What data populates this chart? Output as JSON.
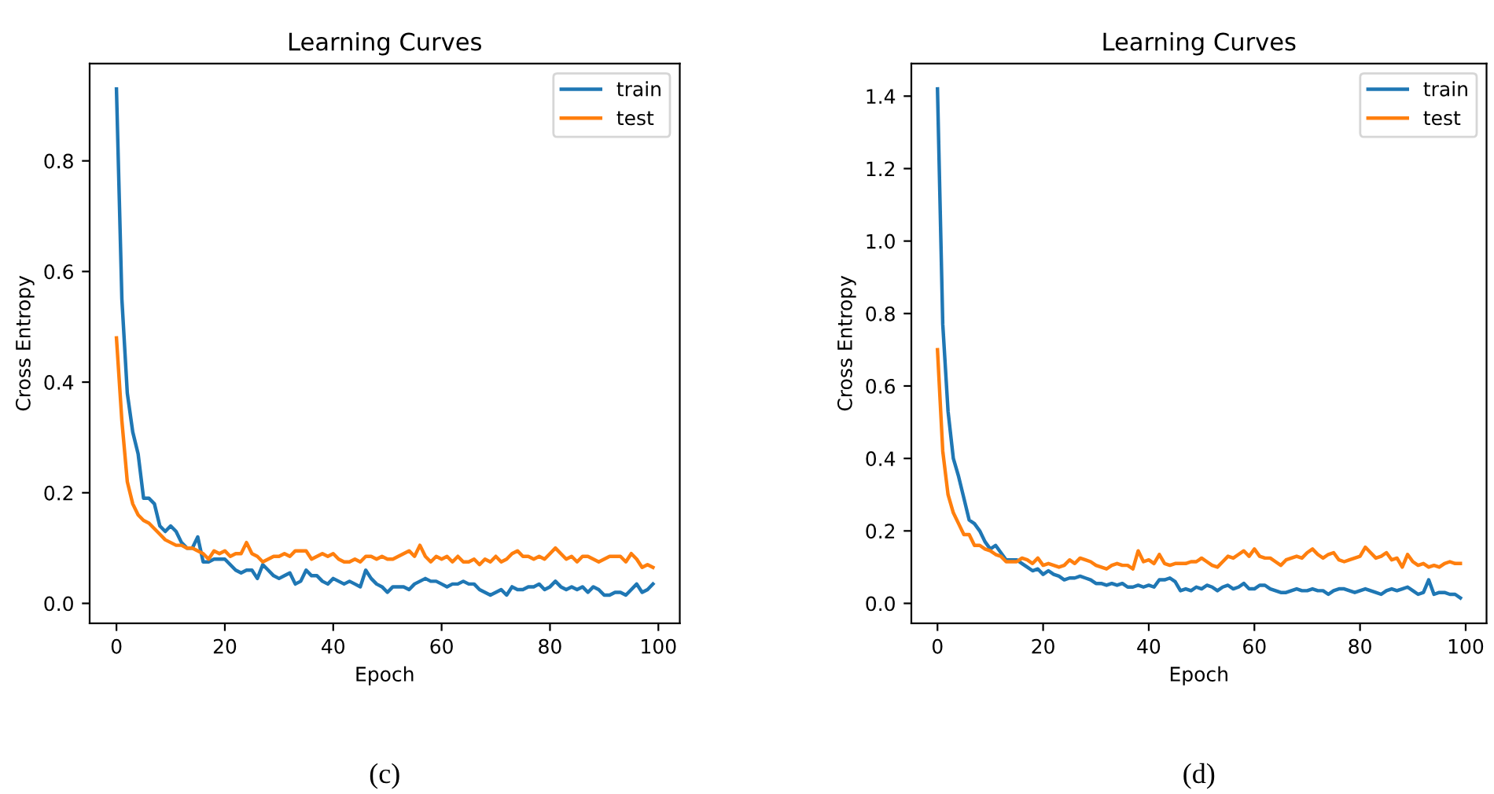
{
  "chart_data": [
    {
      "type": "line",
      "title": "Learning Curves",
      "xlabel": "Epoch",
      "ylabel": "Cross Entropy",
      "annotations": [
        "(c)"
      ],
      "legend": "top right",
      "xlim": [
        -4.95,
        103.95
      ],
      "ylim": [
        -0.036,
        0.976
      ],
      "xticks": [
        0,
        20,
        40,
        60,
        80,
        100
      ],
      "yticks": [
        {
          "value": 0,
          "label": "0.0"
        },
        {
          "value": 0.2,
          "label": "0.2"
        },
        {
          "value": 0.4,
          "label": "0.4"
        },
        {
          "value": 0.6,
          "label": "0.6"
        },
        {
          "value": 0.8,
          "label": "0.8"
        }
      ],
      "x": [
        0,
        1,
        2,
        3,
        4,
        5,
        6,
        7,
        8,
        9,
        10,
        11,
        12,
        13,
        14,
        15,
        16,
        17,
        18,
        19,
        20,
        21,
        22,
        23,
        24,
        25,
        26,
        27,
        28,
        29,
        30,
        31,
        32,
        33,
        34,
        35,
        36,
        37,
        38,
        39,
        40,
        41,
        42,
        43,
        44,
        45,
        46,
        47,
        48,
        49,
        50,
        51,
        52,
        53,
        54,
        55,
        56,
        57,
        58,
        59,
        60,
        61,
        62,
        63,
        64,
        65,
        66,
        67,
        68,
        69,
        70,
        71,
        72,
        73,
        74,
        75,
        76,
        77,
        78,
        79,
        80,
        81,
        82,
        83,
        84,
        85,
        86,
        87,
        88,
        89,
        90,
        91,
        92,
        93,
        94,
        95,
        96,
        97,
        98,
        99
      ],
      "series": [
        {
          "name": "train",
          "color": "#1f77b4",
          "values": [
            0.93,
            0.55,
            0.38,
            0.31,
            0.27,
            0.19,
            0.19,
            0.18,
            0.14,
            0.13,
            0.14,
            0.13,
            0.11,
            0.1,
            0.1,
            0.12,
            0.075,
            0.075,
            0.08,
            0.08,
            0.08,
            0.07,
            0.06,
            0.055,
            0.06,
            0.06,
            0.045,
            0.07,
            0.06,
            0.05,
            0.045,
            0.05,
            0.055,
            0.035,
            0.04,
            0.06,
            0.05,
            0.05,
            0.04,
            0.035,
            0.045,
            0.04,
            0.035,
            0.04,
            0.035,
            0.03,
            0.06,
            0.045,
            0.035,
            0.03,
            0.02,
            0.03,
            0.03,
            0.03,
            0.025,
            0.035,
            0.04,
            0.045,
            0.04,
            0.04,
            0.035,
            0.03,
            0.035,
            0.035,
            0.04,
            0.035,
            0.035,
            0.025,
            0.02,
            0.015,
            0.02,
            0.025,
            0.015,
            0.03,
            0.025,
            0.025,
            0.03,
            0.03,
            0.035,
            0.025,
            0.03,
            0.04,
            0.03,
            0.025,
            0.03,
            0.025,
            0.03,
            0.02,
            0.03,
            0.025,
            0.015,
            0.015,
            0.02,
            0.02,
            0.015,
            0.025,
            0.035,
            0.02,
            0.025,
            0.035
          ]
        },
        {
          "name": "test",
          "color": "#ff7f0e",
          "values": [
            0.48,
            0.33,
            0.22,
            0.18,
            0.16,
            0.15,
            0.145,
            0.135,
            0.125,
            0.115,
            0.11,
            0.105,
            0.105,
            0.1,
            0.1,
            0.095,
            0.09,
            0.08,
            0.095,
            0.09,
            0.095,
            0.085,
            0.09,
            0.09,
            0.11,
            0.09,
            0.085,
            0.075,
            0.08,
            0.085,
            0.085,
            0.09,
            0.085,
            0.095,
            0.095,
            0.095,
            0.08,
            0.085,
            0.09,
            0.085,
            0.09,
            0.08,
            0.075,
            0.075,
            0.08,
            0.075,
            0.085,
            0.085,
            0.08,
            0.085,
            0.08,
            0.08,
            0.085,
            0.09,
            0.095,
            0.085,
            0.105,
            0.085,
            0.075,
            0.085,
            0.08,
            0.085,
            0.075,
            0.085,
            0.075,
            0.075,
            0.08,
            0.07,
            0.08,
            0.075,
            0.085,
            0.075,
            0.08,
            0.09,
            0.095,
            0.085,
            0.085,
            0.08,
            0.085,
            0.08,
            0.09,
            0.1,
            0.09,
            0.08,
            0.085,
            0.075,
            0.085,
            0.085,
            0.08,
            0.075,
            0.08,
            0.085,
            0.085,
            0.085,
            0.075,
            0.09,
            0.08,
            0.065,
            0.07,
            0.065
          ]
        }
      ]
    },
    {
      "type": "line",
      "title": "Learning Curves",
      "xlabel": "Epoch",
      "ylabel": "Cross Entropy",
      "annotations": [
        "(d)"
      ],
      "legend": "top right",
      "xlim": [
        -4.95,
        103.95
      ],
      "ylim": [
        -0.055,
        1.49
      ],
      "xticks": [
        0,
        20,
        40,
        60,
        80,
        100
      ],
      "yticks": [
        {
          "value": 0,
          "label": "0.0"
        },
        {
          "value": 0.2,
          "label": "0.2"
        },
        {
          "value": 0.4,
          "label": "0.4"
        },
        {
          "value": 0.6,
          "label": "0.6"
        },
        {
          "value": 0.8,
          "label": "0.8"
        },
        {
          "value": 1.0,
          "label": "1.0"
        },
        {
          "value": 1.2,
          "label": "1.2"
        },
        {
          "value": 1.4,
          "label": "1.4"
        }
      ],
      "x": [
        0,
        1,
        2,
        3,
        4,
        5,
        6,
        7,
        8,
        9,
        10,
        11,
        12,
        13,
        14,
        15,
        16,
        17,
        18,
        19,
        20,
        21,
        22,
        23,
        24,
        25,
        26,
        27,
        28,
        29,
        30,
        31,
        32,
        33,
        34,
        35,
        36,
        37,
        38,
        39,
        40,
        41,
        42,
        43,
        44,
        45,
        46,
        47,
        48,
        49,
        50,
        51,
        52,
        53,
        54,
        55,
        56,
        57,
        58,
        59,
        60,
        61,
        62,
        63,
        64,
        65,
        66,
        67,
        68,
        69,
        70,
        71,
        72,
        73,
        74,
        75,
        76,
        77,
        78,
        79,
        80,
        81,
        82,
        83,
        84,
        85,
        86,
        87,
        88,
        89,
        90,
        91,
        92,
        93,
        94,
        95,
        96,
        97,
        98,
        99
      ],
      "series": [
        {
          "name": "train",
          "color": "#1f77b4",
          "values": [
            1.42,
            0.77,
            0.53,
            0.4,
            0.35,
            0.29,
            0.23,
            0.22,
            0.2,
            0.17,
            0.15,
            0.16,
            0.14,
            0.12,
            0.12,
            0.12,
            0.11,
            0.1,
            0.09,
            0.095,
            0.08,
            0.09,
            0.08,
            0.075,
            0.065,
            0.07,
            0.07,
            0.075,
            0.07,
            0.065,
            0.055,
            0.055,
            0.05,
            0.055,
            0.05,
            0.055,
            0.045,
            0.045,
            0.05,
            0.045,
            0.05,
            0.045,
            0.065,
            0.065,
            0.07,
            0.06,
            0.035,
            0.04,
            0.035,
            0.045,
            0.04,
            0.05,
            0.045,
            0.035,
            0.045,
            0.05,
            0.04,
            0.045,
            0.055,
            0.04,
            0.04,
            0.05,
            0.05,
            0.04,
            0.035,
            0.03,
            0.03,
            0.035,
            0.04,
            0.035,
            0.035,
            0.04,
            0.035,
            0.035,
            0.025,
            0.035,
            0.04,
            0.04,
            0.035,
            0.03,
            0.035,
            0.04,
            0.035,
            0.03,
            0.025,
            0.035,
            0.04,
            0.035,
            0.04,
            0.045,
            0.035,
            0.025,
            0.03,
            0.065,
            0.025,
            0.03,
            0.03,
            0.025,
            0.025,
            0.015
          ]
        },
        {
          "name": "test",
          "color": "#ff7f0e",
          "values": [
            0.7,
            0.42,
            0.3,
            0.25,
            0.22,
            0.19,
            0.19,
            0.16,
            0.16,
            0.15,
            0.145,
            0.135,
            0.13,
            0.115,
            0.115,
            0.115,
            0.125,
            0.12,
            0.11,
            0.125,
            0.105,
            0.11,
            0.105,
            0.1,
            0.105,
            0.12,
            0.11,
            0.125,
            0.12,
            0.115,
            0.105,
            0.1,
            0.095,
            0.105,
            0.11,
            0.105,
            0.105,
            0.095,
            0.145,
            0.115,
            0.12,
            0.11,
            0.135,
            0.11,
            0.105,
            0.11,
            0.11,
            0.11,
            0.115,
            0.115,
            0.125,
            0.115,
            0.105,
            0.1,
            0.115,
            0.13,
            0.125,
            0.135,
            0.145,
            0.13,
            0.15,
            0.13,
            0.125,
            0.125,
            0.115,
            0.105,
            0.12,
            0.125,
            0.13,
            0.125,
            0.14,
            0.15,
            0.135,
            0.125,
            0.135,
            0.14,
            0.12,
            0.115,
            0.12,
            0.125,
            0.13,
            0.155,
            0.14,
            0.125,
            0.13,
            0.14,
            0.12,
            0.125,
            0.1,
            0.135,
            0.115,
            0.105,
            0.11,
            0.1,
            0.105,
            0.1,
            0.11,
            0.115,
            0.11,
            0.11
          ]
        }
      ]
    }
  ]
}
